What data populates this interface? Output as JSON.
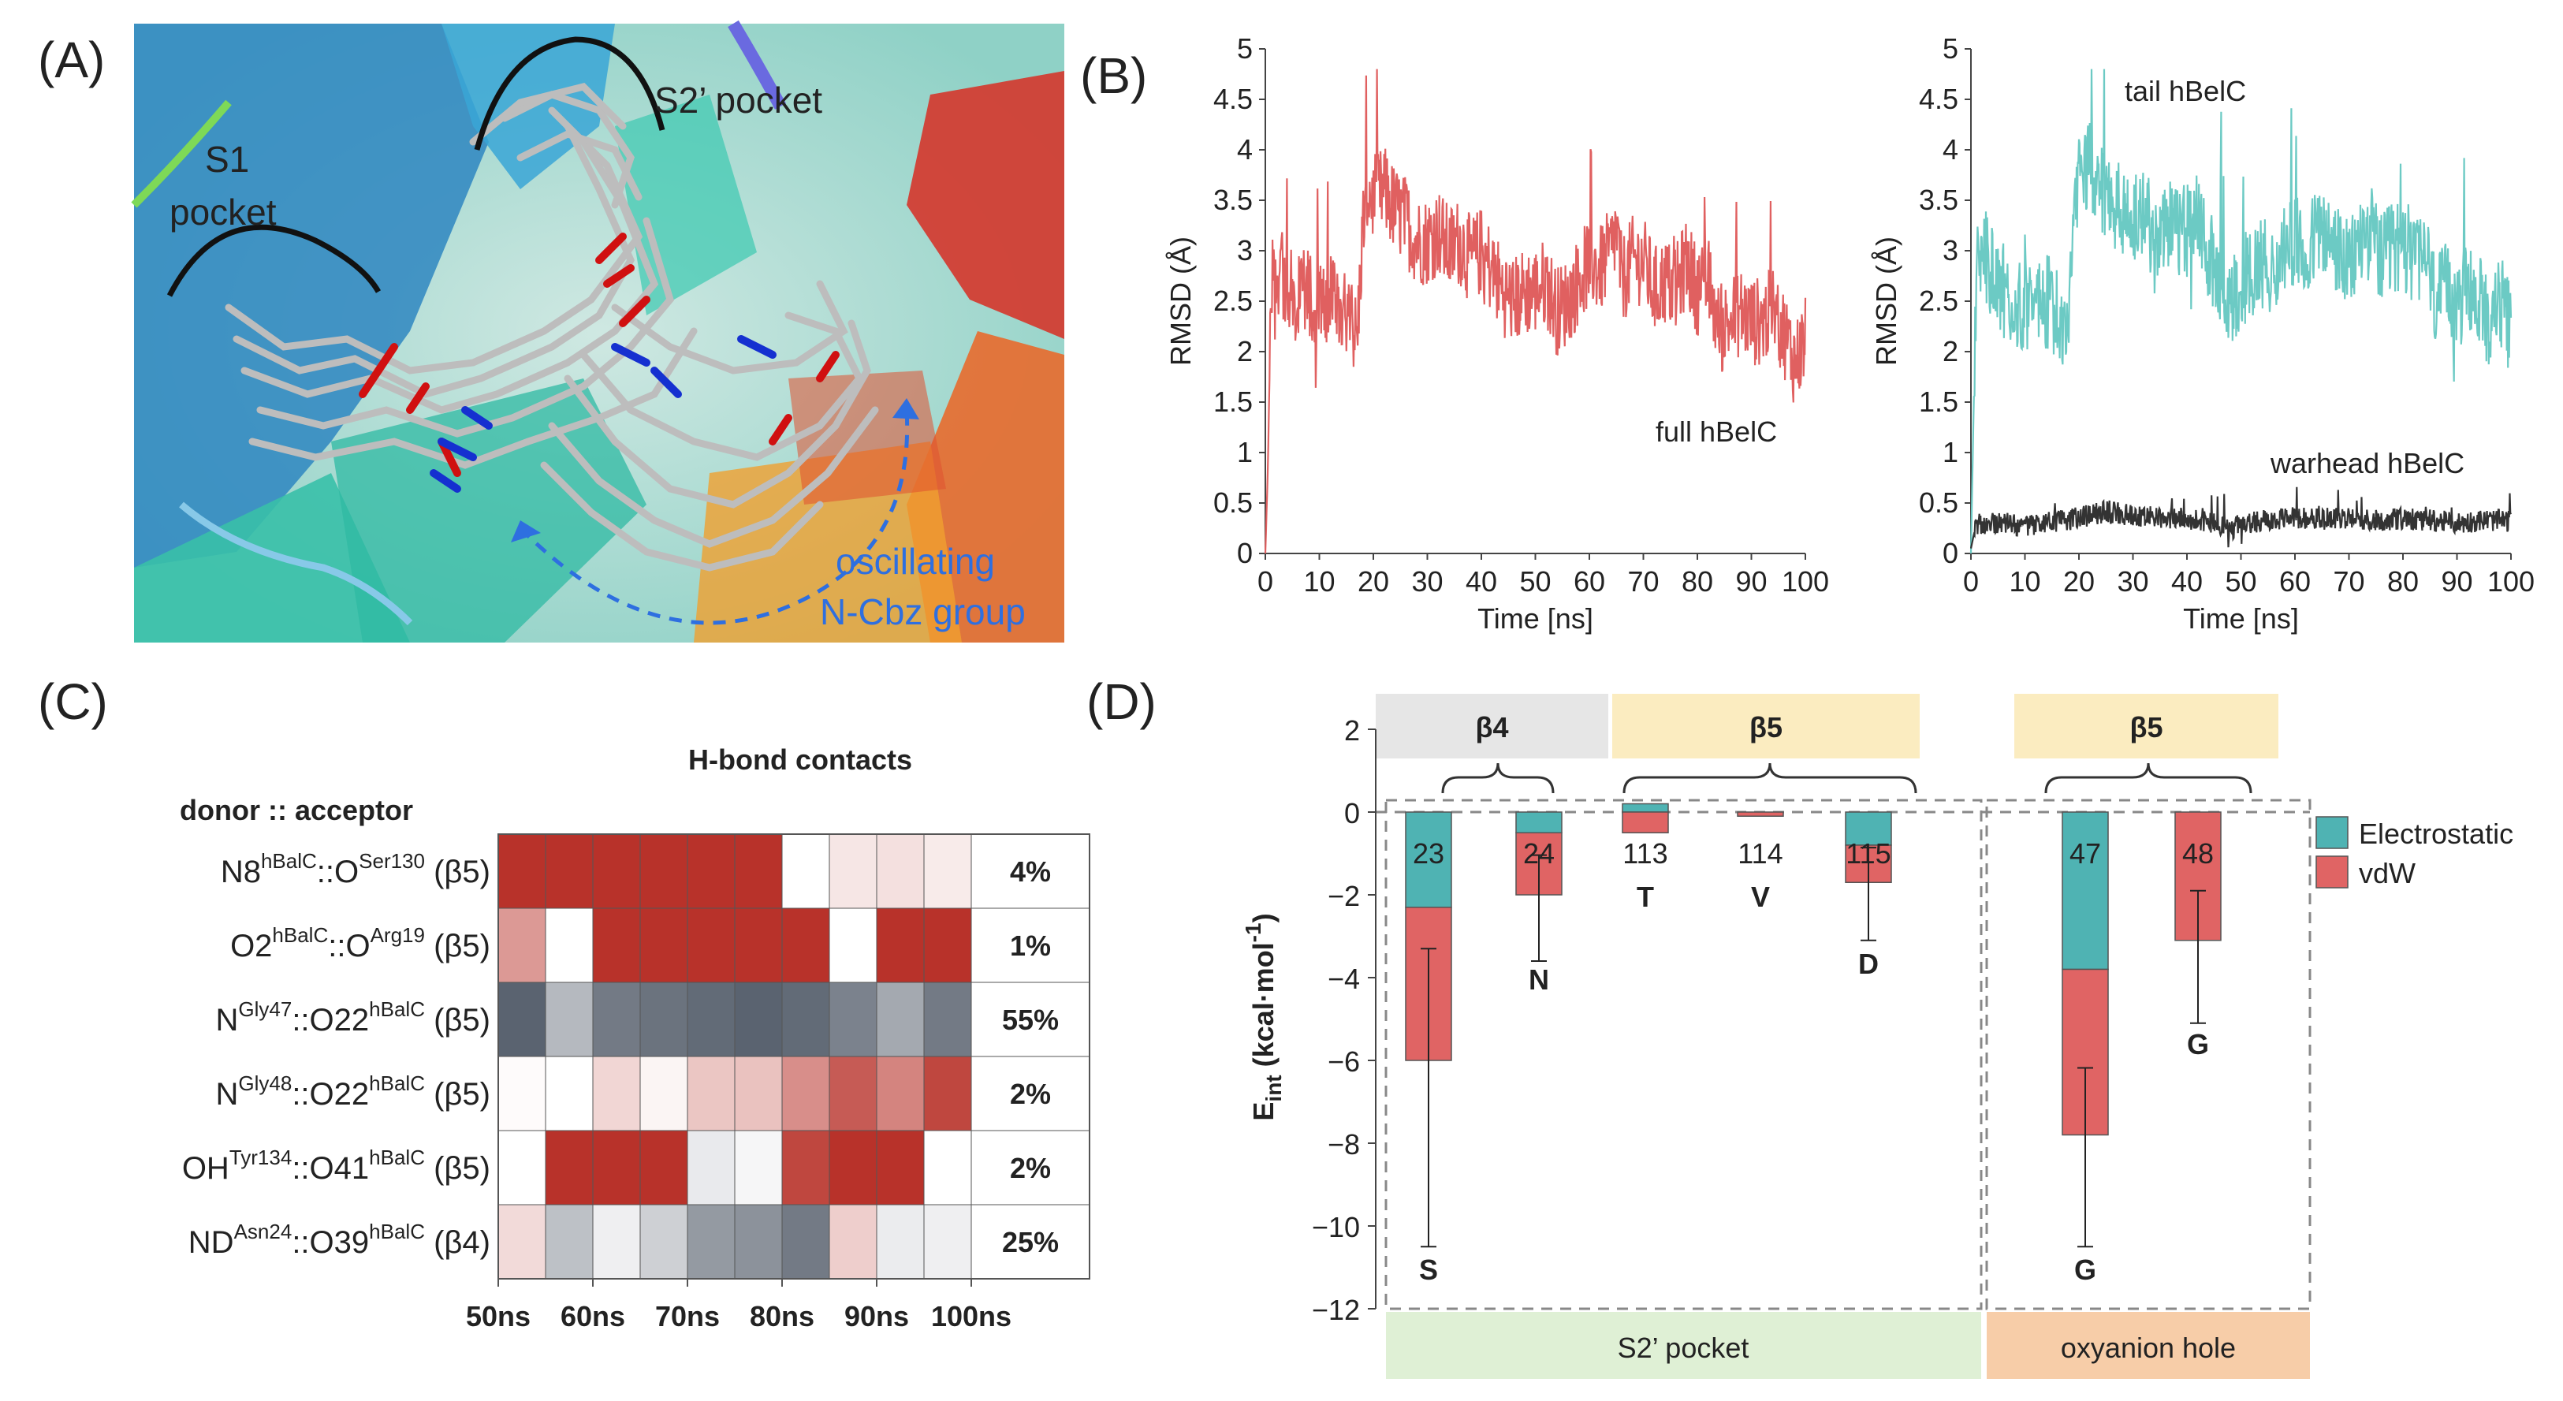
{
  "panels": {
    "a": {
      "label": "(A)",
      "annotations": {
        "s1_line1": "S1",
        "s1_line2": "pocket",
        "s2": "S2’ pocket",
        "osc_line1": "oscillating",
        "osc_line2": "N-Cbz group"
      }
    },
    "b": {
      "label": "(B)"
    },
    "c": {
      "label": "(C)"
    },
    "d": {
      "label": "(D)"
    }
  },
  "colors": {
    "protein_cyan": "#3fc4b3",
    "protein_blue": "#2e86c1",
    "protein_red": "#d43a2f",
    "protein_orange": "#f0a030",
    "ligand_gray": "#b8b8b8",
    "oxygen_red": "#d01010",
    "nitrogen_blue": "#1530d0",
    "rmsd_red": "#e06060",
    "rmsd_teal": "#6ccac4",
    "rmsd_black": "#333333",
    "hb_red": "#b8322a",
    "hb_slate": "#5a6370",
    "elec": "#4fb3b3",
    "vdw": "#e06464",
    "beta4_bg": "#e6e6e6",
    "beta5_bg": "#fbecc0",
    "s2_bg": "#dff0d5",
    "oxy_bg": "#f7cda8"
  },
  "chart_data": [
    {
      "id": "rmsd_full",
      "type": "line",
      "title": "",
      "series_label": "full hBelC",
      "xlabel": "Time [ns]",
      "ylabel": "RMSD (Å)",
      "xlim": [
        0,
        100
      ],
      "ylim": [
        0,
        5
      ],
      "x_ticks": [
        "0",
        "10",
        "20",
        "30",
        "40",
        "50",
        "60",
        "70",
        "80",
        "90",
        "100"
      ],
      "y_ticks": [
        "0",
        "0.5",
        "1",
        "1.5",
        "2",
        "2.5",
        "3",
        "3.5",
        "4",
        "4.5",
        "5"
      ],
      "series": [
        {
          "name": "full hBelC",
          "x": [
            0,
            0.5,
            1,
            2,
            4,
            6,
            8,
            10,
            12,
            14,
            16,
            17,
            18,
            19,
            20,
            22,
            24,
            26,
            28,
            30,
            32,
            34,
            36,
            38,
            40,
            42,
            44,
            46,
            48,
            50,
            52,
            54,
            56,
            58,
            60,
            62,
            64,
            65,
            66,
            68,
            70,
            72,
            74,
            76,
            78,
            80,
            82,
            84,
            86,
            88,
            90,
            92,
            94,
            96,
            98,
            100
          ],
          "y": [
            0.0,
            0.9,
            2.6,
            2.8,
            2.7,
            2.5,
            2.6,
            2.4,
            2.5,
            2.4,
            2.3,
            2.1,
            3.2,
            3.6,
            3.5,
            3.6,
            3.4,
            3.3,
            3.1,
            3.1,
            3.2,
            3.0,
            3.1,
            2.9,
            3.0,
            2.8,
            2.6,
            2.5,
            2.6,
            2.6,
            2.7,
            2.4,
            2.5,
            2.7,
            2.9,
            2.8,
            3.0,
            3.2,
            2.7,
            2.9,
            2.9,
            2.6,
            2.7,
            2.6,
            2.9,
            2.6,
            2.7,
            2.2,
            2.3,
            2.4,
            2.3,
            2.3,
            2.4,
            2.2,
            1.9,
            2.1
          ]
        }
      ]
    },
    {
      "id": "rmsd_parts",
      "type": "line",
      "title": "",
      "xlabel": "Time [ns]",
      "ylabel": "RMSD (Å)",
      "xlim": [
        0,
        100
      ],
      "ylim": [
        0,
        5
      ],
      "x_ticks": [
        "0",
        "10",
        "20",
        "30",
        "40",
        "50",
        "60",
        "70",
        "80",
        "90",
        "100"
      ],
      "y_ticks": [
        "0",
        "0.5",
        "1",
        "1.5",
        "2",
        "2.5",
        "3",
        "3.5",
        "4",
        "4.5",
        "5"
      ],
      "series": [
        {
          "name": "tail hBelC",
          "x": [
            0,
            0.5,
            1,
            2,
            4,
            6,
            8,
            10,
            12,
            14,
            16,
            18,
            19,
            20,
            22,
            24,
            26,
            28,
            30,
            32,
            34,
            36,
            38,
            40,
            42,
            44,
            46,
            48,
            50,
            52,
            54,
            56,
            58,
            60,
            62,
            64,
            66,
            68,
            70,
            72,
            74,
            76,
            78,
            80,
            82,
            84,
            86,
            88,
            90,
            92,
            94,
            96,
            98,
            100
          ],
          "y": [
            0.0,
            1.4,
            2.8,
            3.0,
            2.8,
            2.6,
            2.5,
            2.5,
            2.4,
            2.5,
            2.4,
            2.2,
            3.0,
            3.9,
            3.8,
            3.6,
            3.5,
            3.4,
            3.3,
            3.3,
            3.2,
            3.3,
            3.2,
            3.2,
            3.3,
            3.0,
            2.7,
            2.5,
            2.7,
            2.8,
            2.9,
            2.8,
            3.0,
            3.1,
            2.9,
            3.2,
            3.1,
            3.0,
            2.8,
            3.1,
            3.2,
            2.9,
            3.0,
            3.1,
            2.9,
            3.0,
            2.5,
            2.6,
            2.4,
            2.7,
            2.5,
            2.3,
            2.5,
            2.2
          ]
        },
        {
          "name": "warhead hBelC",
          "x": [
            0,
            1,
            5,
            10,
            15,
            20,
            25,
            30,
            35,
            40,
            45,
            48,
            50,
            55,
            60,
            65,
            70,
            75,
            80,
            85,
            90,
            95,
            100
          ],
          "y": [
            0.05,
            0.3,
            0.3,
            0.28,
            0.32,
            0.35,
            0.42,
            0.38,
            0.35,
            0.34,
            0.3,
            0.22,
            0.3,
            0.33,
            0.36,
            0.34,
            0.36,
            0.33,
            0.35,
            0.33,
            0.3,
            0.33,
            0.32
          ]
        }
      ]
    },
    {
      "id": "hbond_heatmap",
      "type": "heatmap",
      "title": "H-bond contacts",
      "row_header": "donor :: acceptor",
      "x_ticks": [
        "50ns",
        "60ns",
        "70ns",
        "80ns",
        "90ns",
        "100ns"
      ],
      "rows": [
        {
          "base": "N8",
          "sup1": "hBalC",
          "mid": "::O",
          "sup2": "Ser130",
          "end": "",
          "sup3": "",
          "strand": " (β5)",
          "percent": "4%",
          "kind": "red",
          "values": [
            1,
            1,
            1,
            1,
            1,
            1,
            0,
            0.12,
            0.15,
            0.1
          ]
        },
        {
          "base": "O2",
          "sup1": "hBalC",
          "mid": "::O",
          "sup2": "Arg19",
          "end": "",
          "sup3": "",
          "strand": " (β5)",
          "percent": "1%",
          "kind": "red",
          "values": [
            0.5,
            0,
            1,
            1,
            1,
            1,
            1,
            0,
            1,
            1
          ]
        },
        {
          "base": "N",
          "sup1": "Gly47",
          "mid": "::O22",
          "sup2": "hBalC",
          "end": "",
          "sup3": "",
          "strand": " (β5)",
          "percent": "55%",
          "kind": "slate",
          "values": [
            1,
            0.45,
            0.85,
            0.9,
            0.95,
            1,
            0.95,
            0.8,
            0.55,
            0.85
          ]
        },
        {
          "base": "N",
          "sup1": "Gly48",
          "mid": "::O22",
          "sup2": "hBalC",
          "end": "",
          "sup3": "",
          "strand": " (β5)",
          "percent": "2%",
          "kind": "red",
          "values": [
            0.02,
            0,
            0.2,
            0.05,
            0.28,
            0.3,
            0.55,
            0.8,
            0.6,
            0.9
          ]
        },
        {
          "base": "OH",
          "sup1": "Tyr134",
          "mid": "::O41",
          "sup2": "hBalC",
          "end": "",
          "sup3": "",
          "strand": " (β5)",
          "percent": "2%",
          "kind": "redmix",
          "values": [
            0,
            1,
            1,
            1,
            -0.12,
            -0.05,
            0.9,
            1,
            1,
            0
          ]
        },
        {
          "base": "ND",
          "sup1": "Asn24",
          "mid": "::O39",
          "sup2": "hBalC",
          "end": "",
          "sup3": "",
          "strand": " (β4)",
          "percent": "25%",
          "kind": "slatemix",
          "values": [
            -0.15,
            0.4,
            0.1,
            0.3,
            0.65,
            0.7,
            0.85,
            -0.2,
            0.12,
            0.1
          ]
        }
      ]
    },
    {
      "id": "interaction_energy",
      "type": "bar",
      "title": "",
      "ylabel_main": "E",
      "ylabel_sub": "int",
      "ylabel_rest": " (kcal·mol",
      "ylabel_sup": "-1",
      "ylabel_end": ")",
      "ylim": [
        -12,
        2
      ],
      "y_ticks": [
        "2",
        "0",
        "−2",
        "−4",
        "−6",
        "−8",
        "−10",
        "−12"
      ],
      "categories": [
        "23",
        "24",
        "113",
        "114",
        "115",
        "47",
        "48"
      ],
      "residues": [
        "S",
        "N",
        "T",
        "V",
        "D",
        "G",
        "G"
      ],
      "legend": [
        "Electrostatic",
        "vdW"
      ],
      "series": [
        {
          "name": "Electrostatic",
          "values": [
            -2.3,
            -0.5,
            0.2,
            0.0,
            -0.8,
            -3.8,
            0.0
          ]
        },
        {
          "name": "vdW",
          "values": [
            -3.7,
            -1.5,
            -0.5,
            -0.1,
            -0.9,
            -4.0,
            -3.1
          ]
        }
      ],
      "error_bars": [
        4.5,
        1.6,
        0,
        0,
        1.4,
        2.7,
        2.0
      ],
      "group_headers": [
        "β4",
        "β5",
        "β5"
      ],
      "footer_labels": [
        "S2’ pocket",
        "oxyanion hole"
      ]
    }
  ]
}
